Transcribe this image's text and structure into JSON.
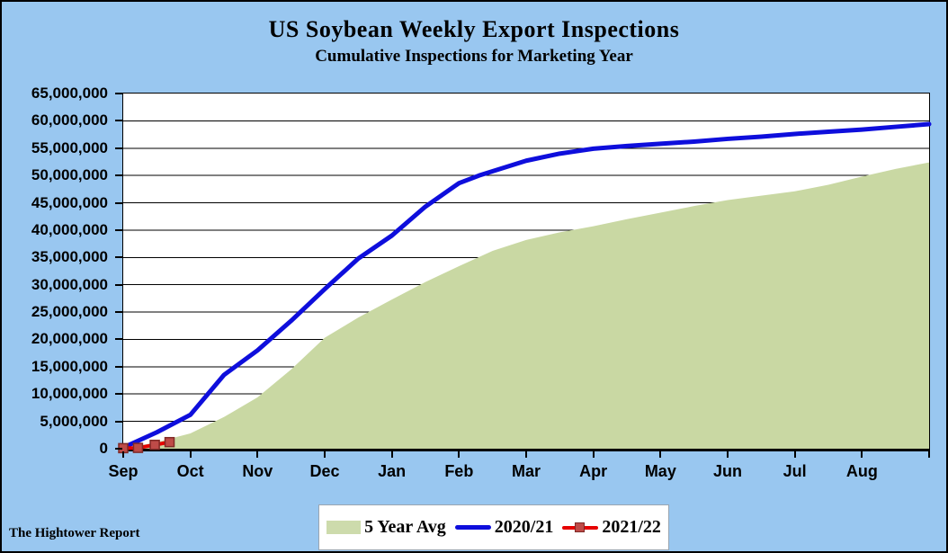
{
  "header": {
    "title": "US Soybean Weekly Export Inspections",
    "subtitle": "Cumulative Inspections for Marketing Year"
  },
  "footer": {
    "source": "The Hightower Report"
  },
  "legend": {
    "items": [
      {
        "label": "5 Year Avg",
        "swatch": "area"
      },
      {
        "label": "2020/21",
        "swatch": "line-blue"
      },
      {
        "label": "2021/22",
        "swatch": "line-red-marker"
      }
    ]
  },
  "colors": {
    "background": "#99C7F0",
    "plot_background": "#FFFFFF",
    "gridline": "#000000",
    "avg_area_fill": "#C9D8A3",
    "line_2020_21": "#0E0EDC",
    "line_2021_22": "#E60000",
    "marker_2021_22_fill": "#BE4B48",
    "marker_2021_22_stroke": "#7F2A27"
  },
  "chart_data": {
    "type": "area",
    "title": "US Soybean Weekly Export Inspections",
    "subtitle": "Cumulative Inspections for Marketing Year",
    "grid": "horizontal",
    "legend_position": "bottom",
    "x_axis": {
      "tick_labels": [
        "Sep",
        "Oct",
        "Nov",
        "Dec",
        "Jan",
        "Feb",
        "Mar",
        "Apr",
        "May",
        "Jun",
        "Jul",
        "Aug"
      ],
      "unit": "month of marketing year",
      "range_months": [
        0,
        12
      ]
    },
    "y_axis": {
      "min": 0,
      "max": 65000000,
      "step": 5000000,
      "tick_labels": [
        "65,000,000",
        "60,000,000",
        "55,000,000",
        "50,000,000",
        "45,000,000",
        "40,000,000",
        "35,000,000",
        "30,000,000",
        "25,000,000",
        "20,000,000",
        "15,000,000",
        "10,000,000",
        "5,000,000",
        "0"
      ]
    },
    "series": [
      {
        "name": "5 Year Avg",
        "type": "area",
        "color": "#C9D8A3",
        "points": [
          [
            0,
            0
          ],
          [
            0.5,
            1200000
          ],
          [
            1,
            2800000
          ],
          [
            1.5,
            5800000
          ],
          [
            2,
            9400000
          ],
          [
            2.5,
            14500000
          ],
          [
            3,
            20300000
          ],
          [
            3.5,
            24000000
          ],
          [
            4,
            27300000
          ],
          [
            4.5,
            30500000
          ],
          [
            5,
            33400000
          ],
          [
            5.5,
            36200000
          ],
          [
            6,
            38200000
          ],
          [
            6.5,
            39600000
          ],
          [
            7,
            40700000
          ],
          [
            7.5,
            42000000
          ],
          [
            8,
            43200000
          ],
          [
            8.5,
            44400000
          ],
          [
            9,
            45500000
          ],
          [
            9.5,
            46300000
          ],
          [
            10,
            47100000
          ],
          [
            10.5,
            48300000
          ],
          [
            11,
            49800000
          ],
          [
            11.5,
            51200000
          ],
          [
            12,
            52400000
          ]
        ]
      },
      {
        "name": "2020/21",
        "type": "line",
        "color": "#0E0EDC",
        "points": [
          [
            0,
            200000
          ],
          [
            0.5,
            3000000
          ],
          [
            1,
            6200000
          ],
          [
            1.5,
            13500000
          ],
          [
            2,
            18000000
          ],
          [
            2.5,
            23400000
          ],
          [
            3,
            29200000
          ],
          [
            3.5,
            34800000
          ],
          [
            4,
            39000000
          ],
          [
            4.5,
            44300000
          ],
          [
            5,
            48600000
          ],
          [
            5.3,
            50000000
          ],
          [
            6,
            52700000
          ],
          [
            6.5,
            54000000
          ],
          [
            7,
            54900000
          ],
          [
            7.5,
            55400000
          ],
          [
            8,
            55800000
          ],
          [
            8.5,
            56200000
          ],
          [
            9,
            56700000
          ],
          [
            9.5,
            57100000
          ],
          [
            10,
            57600000
          ],
          [
            10.5,
            58000000
          ],
          [
            11,
            58400000
          ],
          [
            11.5,
            58900000
          ],
          [
            12,
            59400000
          ]
        ]
      },
      {
        "name": "2021/22",
        "type": "line-marker",
        "color": "#E60000",
        "marker_color": "#BE4B48",
        "marker_stroke": "#7F2A27",
        "points": [
          [
            0,
            100000
          ],
          [
            0.22,
            150000
          ],
          [
            0.47,
            700000
          ],
          [
            0.69,
            1200000
          ]
        ]
      }
    ]
  }
}
